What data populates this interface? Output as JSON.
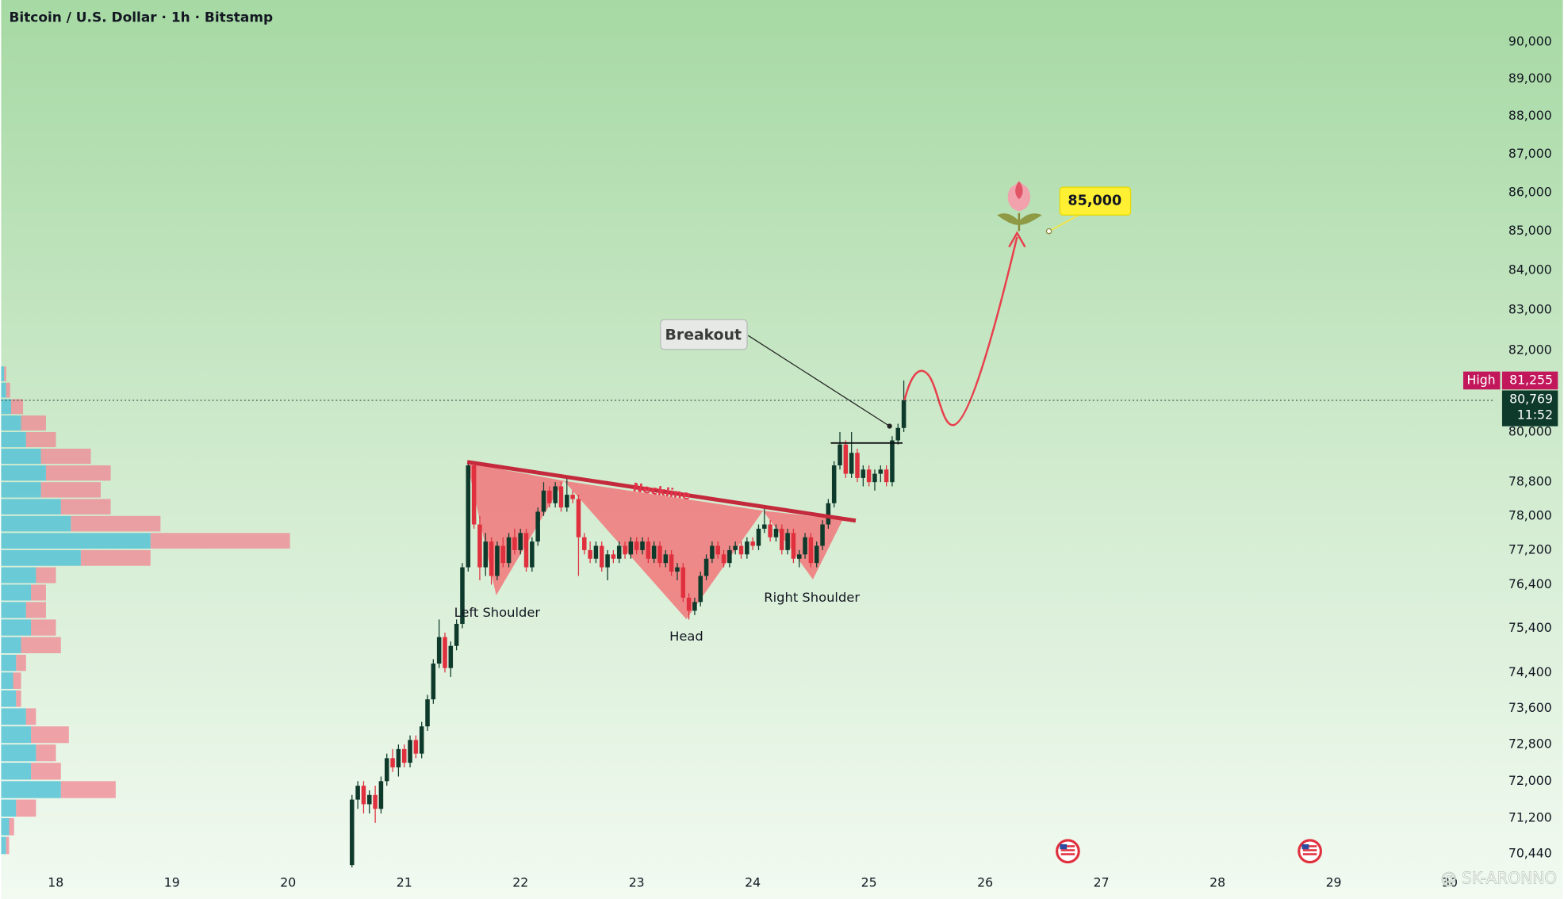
{
  "chart_data": {
    "type": "candlestick",
    "title": "Bitcoin / U.S. Dollar · 1h · Bitstamp",
    "log_scale": true,
    "grid": false,
    "up_color": "#0e3a2c",
    "down_color": "#e0303e",
    "xlim": [
      17.53,
      30.39
    ],
    "xticks": [
      18,
      19,
      20,
      21,
      22,
      23,
      24,
      25,
      26,
      27,
      28,
      29,
      30
    ],
    "ylim": [
      70176,
      91144
    ],
    "yticks": [
      {
        "value": 90000,
        "label": "90,000"
      },
      {
        "value": 89000,
        "label": "89,000"
      },
      {
        "value": 88000,
        "label": "88,000"
      },
      {
        "value": 87000,
        "label": "87,000"
      },
      {
        "value": 86000,
        "label": "86,000"
      },
      {
        "value": 85000,
        "label": "85,000"
      },
      {
        "value": 84000,
        "label": "84,000"
      },
      {
        "value": 83000,
        "label": "83,000"
      },
      {
        "value": 82000,
        "label": "82,000"
      },
      {
        "value": 80000,
        "label": "80,000"
      },
      {
        "value": 78800,
        "label": "78,800"
      },
      {
        "value": 78000,
        "label": "78,000"
      },
      {
        "value": 77200,
        "label": "77,200"
      },
      {
        "value": 76400,
        "label": "76,400"
      },
      {
        "value": 75400,
        "label": "75,400"
      },
      {
        "value": 74400,
        "label": "74,400"
      },
      {
        "value": 73600,
        "label": "73,600"
      },
      {
        "value": 72800,
        "label": "72,800"
      },
      {
        "value": 72000,
        "label": "72,000"
      },
      {
        "value": 71200,
        "label": "71,200"
      },
      {
        "value": 70440,
        "label": "70,440"
      }
    ],
    "x": [
      20.55,
      20.6,
      20.65,
      20.7,
      20.75,
      20.8,
      20.85,
      20.9,
      20.95,
      21.0,
      21.05,
      21.1,
      21.15,
      21.2,
      21.25,
      21.3,
      21.35,
      21.4,
      21.45,
      21.5,
      21.55,
      21.6,
      21.65,
      21.7,
      21.75,
      21.8,
      21.85,
      21.9,
      21.95,
      22.0,
      22.05,
      22.1,
      22.15,
      22.2,
      22.25,
      22.3,
      22.35,
      22.4,
      22.45,
      22.5,
      22.55,
      22.6,
      22.65,
      22.7,
      22.75,
      22.8,
      22.85,
      22.9,
      22.95,
      23.0,
      23.05,
      23.1,
      23.15,
      23.2,
      23.25,
      23.3,
      23.35,
      23.4,
      23.45,
      23.5,
      23.55,
      23.6,
      23.65,
      23.7,
      23.75,
      23.8,
      23.85,
      23.9,
      23.95,
      24.0,
      24.05,
      24.1,
      24.15,
      24.2,
      24.25,
      24.3,
      24.35,
      24.4,
      24.45,
      24.5,
      24.55,
      24.6,
      24.65,
      24.7,
      24.75,
      24.8,
      24.85,
      24.9,
      24.95,
      25.0,
      25.05,
      25.1,
      25.15,
      25.2,
      25.25,
      25.3
    ],
    "open": [
      70200,
      71600,
      71900,
      71500,
      71700,
      71400,
      72000,
      72500,
      72300,
      72700,
      72400,
      72900,
      72600,
      73200,
      73800,
      74600,
      75200,
      74500,
      75000,
      75500,
      76800,
      79200,
      77800,
      76800,
      77400,
      76600,
      77300,
      76900,
      77500,
      77200,
      77600,
      76800,
      77400,
      78100,
      78600,
      78300,
      78700,
      78200,
      78500,
      78400,
      77500,
      77200,
      77000,
      77300,
      76800,
      77100,
      77000,
      77300,
      77100,
      77400,
      77200,
      77400,
      77000,
      77300,
      76900,
      77100,
      76700,
      76800,
      76100,
      75800,
      76000,
      76600,
      77000,
      77300,
      77100,
      76900,
      77200,
      77300,
      77100,
      77400,
      77300,
      77700,
      77800,
      77500,
      77700,
      77200,
      77600,
      77000,
      77100,
      77500,
      76900,
      77300,
      77800,
      78300,
      79200,
      79700,
      79000,
      79500,
      78900,
      79100,
      78800,
      79000,
      79100,
      78800,
      79800,
      80100
    ],
    "high": [
      71700,
      72000,
      72000,
      71800,
      71900,
      72100,
      72600,
      72700,
      72800,
      72800,
      73000,
      73000,
      73300,
      73900,
      74700,
      75600,
      75300,
      75100,
      75600,
      76900,
      79300,
      79300,
      78000,
      77600,
      77500,
      77400,
      77500,
      77600,
      77700,
      77700,
      77700,
      77500,
      78200,
      78800,
      78700,
      78800,
      78800,
      78900,
      78600,
      78500,
      77600,
      77400,
      77400,
      77400,
      77200,
      77200,
      77400,
      77400,
      77500,
      77500,
      77500,
      77500,
      77400,
      77400,
      77200,
      77200,
      76900,
      76900,
      76200,
      76100,
      76700,
      77100,
      77400,
      77400,
      77200,
      77300,
      77400,
      77400,
      77500,
      77500,
      77800,
      78200,
      77900,
      77800,
      77800,
      77700,
      77700,
      77200,
      77600,
      77600,
      77400,
      77900,
      78400,
      79300,
      80000,
      79800,
      80000,
      79600,
      79200,
      79200,
      79100,
      79200,
      79200,
      79900,
      80200,
      81255
    ],
    "low": [
      70150,
      71400,
      71300,
      71300,
      71100,
      71300,
      71900,
      72200,
      72100,
      72300,
      72300,
      72500,
      72500,
      73100,
      73700,
      74500,
      74400,
      74300,
      74900,
      75400,
      76700,
      77700,
      76500,
      76600,
      76400,
      76500,
      76800,
      76800,
      77100,
      77100,
      76700,
      76700,
      77300,
      78000,
      78200,
      78200,
      78100,
      78100,
      78300,
      76600,
      77100,
      76900,
      76900,
      76700,
      76500,
      76900,
      76900,
      77000,
      77000,
      77100,
      77100,
      76900,
      76900,
      76800,
      76800,
      76600,
      76500,
      76000,
      75600,
      75700,
      75900,
      76500,
      76900,
      77000,
      76800,
      76800,
      77100,
      77000,
      77000,
      77200,
      77200,
      77600,
      77400,
      77400,
      77100,
      77100,
      76900,
      76800,
      77000,
      76800,
      76800,
      77200,
      77700,
      78200,
      79100,
      78900,
      78900,
      78800,
      78700,
      78700,
      78600,
      78800,
      78700,
      78700,
      79700,
      80000
    ],
    "close": [
      71600,
      71900,
      71500,
      71700,
      71400,
      72000,
      72500,
      72300,
      72700,
      72400,
      72900,
      72600,
      73200,
      73800,
      74600,
      75200,
      74500,
      75000,
      75500,
      76800,
      79200,
      77800,
      76800,
      77400,
      76600,
      77300,
      76900,
      77500,
      77200,
      77600,
      76800,
      77400,
      78100,
      78600,
      78300,
      78700,
      78200,
      78500,
      78400,
      77500,
      77200,
      77000,
      77300,
      76800,
      77100,
      77000,
      77300,
      77100,
      77400,
      77200,
      77400,
      77000,
      77300,
      76900,
      77100,
      76700,
      76800,
      76100,
      75800,
      76000,
      76600,
      77000,
      77300,
      77100,
      76900,
      77200,
      77300,
      77100,
      77400,
      77300,
      77700,
      77800,
      77500,
      77700,
      77200,
      77600,
      77000,
      77100,
      77500,
      76900,
      77300,
      77800,
      78300,
      79200,
      79700,
      79000,
      79500,
      78900,
      79100,
      78800,
      79000,
      79100,
      78800,
      79800,
      80100,
      80769
    ],
    "volume_profile": {
      "prices": [
        81200,
        80800,
        80400,
        80000,
        79600,
        79200,
        78800,
        78400,
        78000,
        77600,
        77200,
        76800,
        76400,
        76000,
        75600,
        75200,
        74800,
        74400,
        74000,
        73600,
        73200,
        72800,
        72400,
        72000,
        71600,
        71200,
        70800,
        70400
      ],
      "bin": 400,
      "buy": [
        3,
        5,
        10,
        20,
        25,
        40,
        45,
        40,
        60,
        70,
        150,
        80,
        35,
        30,
        25,
        30,
        20,
        15,
        12,
        15,
        25,
        30,
        35,
        30,
        60,
        15,
        8,
        5
      ],
      "sell": [
        2,
        4,
        12,
        25,
        30,
        50,
        65,
        60,
        50,
        90,
        140,
        70,
        20,
        15,
        20,
        25,
        40,
        10,
        8,
        5,
        10,
        38,
        20,
        30,
        55,
        20,
        5,
        3
      ],
      "buy_color": "#56c3d6",
      "sell_color": "#f08592"
    },
    "high_marker": {
      "text": "High",
      "value": 81255,
      "label": "81,255"
    },
    "last_price": {
      "value": 80769,
      "label": "80,769",
      "countdown": "11:52"
    },
    "target": {
      "value": 85000,
      "label": "85,000"
    },
    "annotations": {
      "breakout": "Breakout",
      "neckline": "Neckline",
      "left_shoulder": "Left Shoulder",
      "head": "Head",
      "right_shoulder": "Right Shoulder"
    },
    "watermark": "@ SK-ARONNO"
  }
}
